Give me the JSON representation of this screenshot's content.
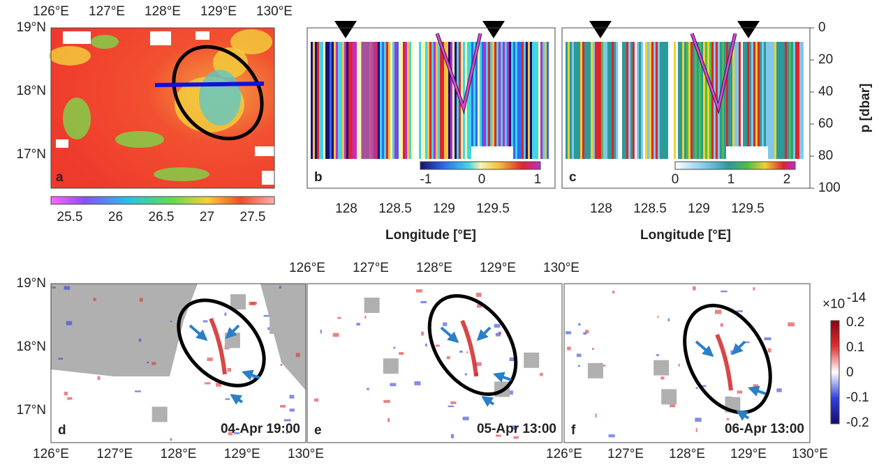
{
  "panel_a": {
    "label": "a",
    "x_ticks": [
      "126°E",
      "127°E",
      "128°E",
      "129°E",
      "130°E"
    ],
    "y_ticks": [
      "19°N",
      "18°N",
      "17°N"
    ],
    "colorbar_ticks": [
      25.5,
      26,
      26.5,
      27,
      27.5
    ]
  },
  "panel_b": {
    "label": "b",
    "x_ticks": [
      128,
      128.5,
      129,
      129.5
    ],
    "colorbar_ticks": [
      -1,
      0,
      1
    ]
  },
  "panel_c": {
    "label": "c",
    "x_ticks": [
      128,
      128.5,
      129,
      129.5
    ],
    "colorbar_ticks": [
      0,
      1,
      2
    ]
  },
  "x_axis_label": "Longitude [°E]",
  "y_axis_label": "p [dbar]",
  "p_ticks": [
    0,
    20,
    40,
    60,
    80,
    100
  ],
  "panel_d": {
    "label": "d",
    "time": "04-Apr 19:00"
  },
  "panel_e": {
    "label": "e",
    "time": "05-Apr 13:00"
  },
  "panel_f": {
    "label": "f",
    "time": "06-Apr 13:00"
  },
  "lower_x_ticks": [
    "126°E",
    "127°E",
    "128°E",
    "129°E",
    "130°E"
  ],
  "lower_y_ticks": [
    "19°N",
    "18°N",
    "17°N"
  ],
  "vorticity_colorbar": {
    "scale": "×10",
    "exponent": "-14",
    "ticks": [
      0.2,
      0.1,
      0,
      -0.1,
      -0.2
    ]
  }
}
